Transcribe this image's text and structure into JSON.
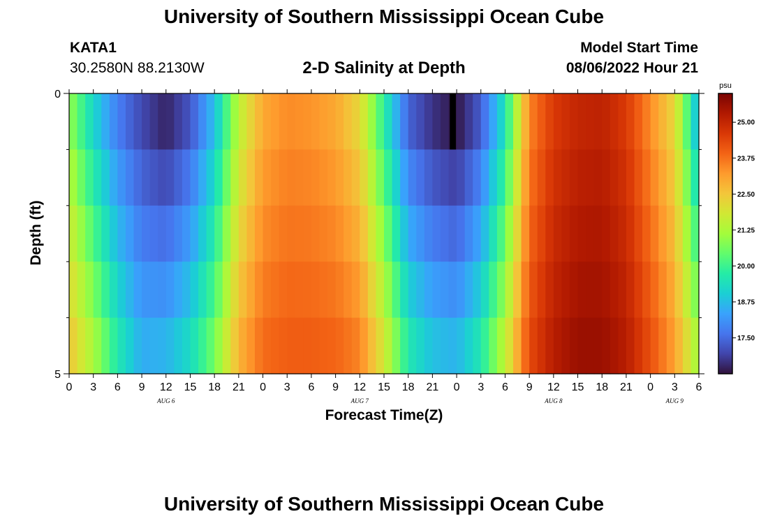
{
  "header": {
    "title": "University of Southern Mississippi Ocean Cube",
    "station": "KATA1",
    "coords": "30.2580N  88.2130W",
    "subtitle": "2-D Salinity at Depth",
    "model_start_label": "Model Start Time",
    "model_start_value": "08/06/2022 Hour 21"
  },
  "footer": {
    "title": "University of Southern Mississippi Ocean Cube"
  },
  "chart_data": {
    "type": "heatmap",
    "title": "2-D Salinity at Depth",
    "xlabel": "Forecast Time(Z)",
    "ylabel": "Depth (ft)",
    "x_hours_from_aug6_00z": [
      0,
      78
    ],
    "y_depth_ft": [
      0,
      5
    ],
    "y_ticks": [
      "0",
      "5"
    ],
    "x_tick_labels": [
      "0",
      "3",
      "6",
      "9",
      "12",
      "15",
      "18",
      "21",
      "0",
      "3",
      "6",
      "9",
      "12",
      "15",
      "18",
      "21",
      "0",
      "3",
      "6",
      "9",
      "12",
      "15",
      "18",
      "21",
      "0",
      "3",
      "6"
    ],
    "day_labels": [
      {
        "text": "AUG 6",
        "hour": 12
      },
      {
        "text": "AUG 7",
        "hour": 36
      },
      {
        "text": "AUG 8",
        "hour": 60
      },
      {
        "text": "AUG 9",
        "hour": 75
      }
    ],
    "depth_layers": 5,
    "surface_salinity_keyframes_hours": [
      0,
      3,
      6,
      9,
      12,
      15,
      18,
      21,
      24,
      27,
      30,
      33,
      36,
      39,
      42,
      45,
      48,
      51,
      54,
      57,
      60,
      63,
      66,
      69,
      72,
      75,
      78
    ],
    "surface_salinity_keyframes_psu": [
      21.0,
      19.2,
      17.8,
      17.0,
      16.5,
      17.2,
      18.8,
      21.5,
      23.0,
      23.4,
      23.3,
      23.0,
      22.2,
      19.8,
      17.4,
      16.7,
      16.3,
      17.3,
      19.5,
      23.5,
      24.6,
      25.0,
      25.1,
      24.6,
      23.4,
      22.2,
      18.5
    ],
    "bottom_salinity_keyframes_psu": [
      22.5,
      21.2,
      19.6,
      18.5,
      18.6,
      19.3,
      20.6,
      22.8,
      23.8,
      24.0,
      24.0,
      23.9,
      23.5,
      21.8,
      19.6,
      18.8,
      18.6,
      19.6,
      21.5,
      24.3,
      25.2,
      25.6,
      25.6,
      25.2,
      24.2,
      23.1,
      21.0
    ],
    "missing_cell": {
      "hour": 47.5,
      "layer": 0
    },
    "colorbar": {
      "unit": "psu",
      "min": 16.25,
      "max": 26.0,
      "tick_values": [
        25.0,
        23.75,
        22.5,
        21.25,
        20.0,
        18.75,
        17.5
      ],
      "tick_labels": [
        "25.00",
        "23.75",
        "22.50",
        "21.25",
        "20.00",
        "18.75",
        "17.50"
      ],
      "colors": [
        "#30123b",
        "#4145ab",
        "#4675ed",
        "#39a2fc",
        "#1bcfd4",
        "#24eca6",
        "#61fc6c",
        "#a4fc3b",
        "#d1e834",
        "#f3c63a",
        "#fe9b2d",
        "#f36315",
        "#d93806",
        "#b11901",
        "#7a0402"
      ]
    }
  }
}
